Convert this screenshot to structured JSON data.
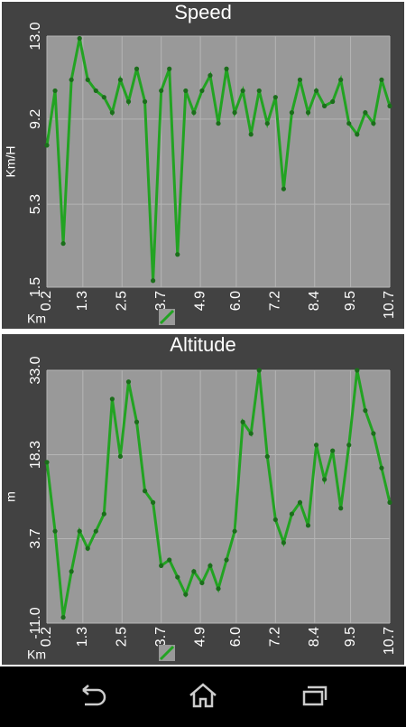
{
  "chart_data": [
    {
      "type": "line",
      "title": "Speed",
      "x_label": "Km",
      "y_label": "Km/H",
      "x": [
        0.2,
        0.45,
        0.7,
        0.95,
        1.2,
        1.45,
        1.7,
        1.95,
        2.2,
        2.45,
        2.7,
        2.95,
        3.2,
        3.45,
        3.7,
        3.95,
        4.2,
        4.45,
        4.7,
        4.95,
        5.2,
        5.45,
        5.7,
        5.95,
        6.2,
        6.45,
        6.7,
        6.95,
        7.2,
        7.45,
        7.7,
        7.95,
        8.2,
        8.45,
        8.7,
        8.95,
        9.2,
        9.45,
        9.7,
        9.95,
        10.2,
        10.45,
        10.7
      ],
      "series": [
        {
          "color": "#22a322",
          "values": [
            8.0,
            10.5,
            3.5,
            11.0,
            12.9,
            11.0,
            10.5,
            10.2,
            9.5,
            11.0,
            10.0,
            11.5,
            10.0,
            1.8,
            10.5,
            11.5,
            3.0,
            10.5,
            9.5,
            10.5,
            11.2,
            9.0,
            11.5,
            9.5,
            10.5,
            8.5,
            10.5,
            9.0,
            10.2,
            6.0,
            9.5,
            11.0,
            9.5,
            10.5,
            9.8,
            10.0,
            11.0,
            9.0,
            8.5,
            9.5,
            9.0,
            11.0,
            9.8
          ]
        }
      ],
      "xlim": [
        0.2,
        10.7
      ],
      "ylim": [
        1.5,
        13.0
      ],
      "xticks": [
        0.2,
        1.3,
        2.5,
        3.7,
        4.9,
        {
          "value": 6,
          "label": "6.0"
        },
        7.2,
        8.4,
        9.5,
        10.7
      ],
      "yticks": [
        1.5,
        5.3,
        9.2,
        {
          "value": 13,
          "label": "13.0"
        }
      ],
      "grid": true
    },
    {
      "type": "line",
      "title": "Altitude",
      "x_label": "Km",
      "y_label": "m",
      "x": [
        0.2,
        0.45,
        0.7,
        0.95,
        1.2,
        1.45,
        1.7,
        1.95,
        2.2,
        2.45,
        2.7,
        2.95,
        3.2,
        3.45,
        3.7,
        3.95,
        4.2,
        4.45,
        4.7,
        4.95,
        5.2,
        5.45,
        5.7,
        5.95,
        6.2,
        6.45,
        6.7,
        6.95,
        7.2,
        7.45,
        7.7,
        7.95,
        8.2,
        8.45,
        8.7,
        8.95,
        9.2,
        9.45,
        9.7,
        9.95,
        10.2,
        10.45,
        10.7
      ],
      "series": [
        {
          "color": "#22a322",
          "values": [
            17,
            5,
            -10,
            -2,
            5,
            2,
            5,
            8,
            28,
            18,
            31,
            24,
            12,
            10,
            -1,
            0,
            -3,
            -6,
            -2,
            -4,
            -1,
            -5,
            0,
            5,
            24,
            22,
            33,
            18,
            7,
            3,
            8,
            10,
            6,
            20,
            14,
            19,
            9,
            20,
            33,
            26,
            22,
            16,
            10
          ]
        }
      ],
      "xlim": [
        0.2,
        10.7
      ],
      "ylim": [
        -11.0,
        33.0
      ],
      "xticks": [
        0.2,
        1.3,
        2.5,
        3.7,
        4.9,
        {
          "value": 6,
          "label": "6.0"
        },
        7.2,
        8.4,
        9.5,
        10.7
      ],
      "yticks": [
        {
          "value": -11,
          "label": "-11.0"
        },
        3.7,
        18.3,
        {
          "value": 33,
          "label": "33.0"
        }
      ],
      "grid": true
    }
  ]
}
